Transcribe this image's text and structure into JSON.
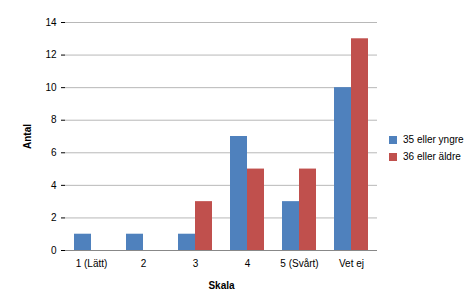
{
  "chart_data": {
    "type": "bar",
    "x_label": "Skala",
    "y_label": "Antal",
    "categories": [
      "1 (Lätt)",
      "2",
      "3",
      "4",
      "5 (Svårt)",
      "Vet ej"
    ],
    "series": [
      {
        "name": "35 eller yngre",
        "color": "#4f81bd",
        "values": [
          1,
          1,
          1,
          7,
          3,
          10
        ]
      },
      {
        "name": "36 eller äldre",
        "color": "#c0504d",
        "values": [
          0,
          0,
          3,
          5,
          5,
          13
        ]
      }
    ],
    "ylim": [
      0,
      14
    ],
    "yticks": [
      0,
      2,
      4,
      6,
      8,
      10,
      12,
      14
    ],
    "grid": true,
    "legend": "right"
  }
}
